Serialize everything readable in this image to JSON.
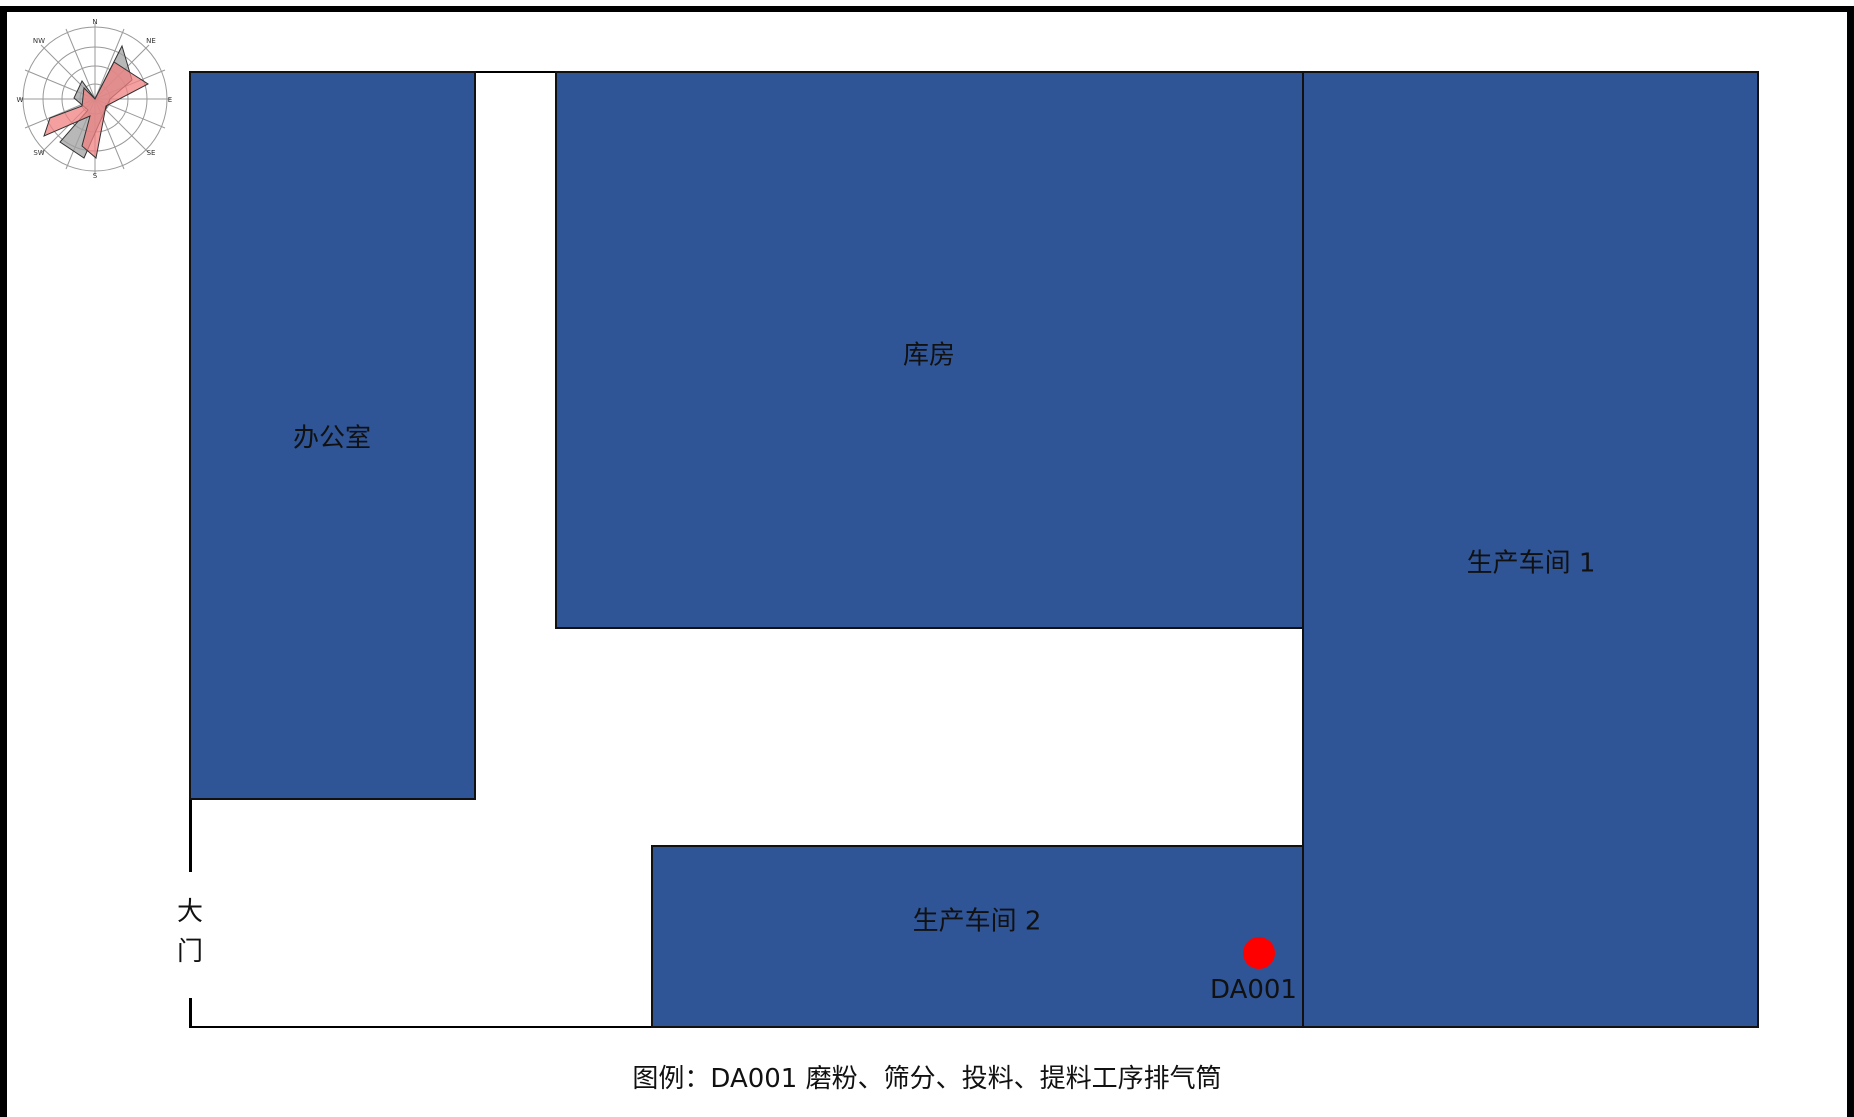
{
  "map": {
    "rooms": {
      "office": "办公室",
      "warehouse": "库房",
      "workshop1": "生产车间 1",
      "workshop2": "生产车间 2"
    },
    "gate": "大\n门",
    "outlet": {
      "id": "DA001",
      "color": "#ff0000"
    },
    "legend": "图例：DA001 磨粉、筛分、投料、提料工序排气筒",
    "compass": {
      "N": "N",
      "NE": "NE",
      "E": "E",
      "SE": "SE",
      "S": "S",
      "SW": "SW",
      "W": "W",
      "NW": "NW"
    }
  },
  "colors": {
    "building": "#2f5596",
    "outlet": "#ff0000",
    "rose_pink": "#f08080",
    "rose_gray": "#a0a0a0"
  }
}
